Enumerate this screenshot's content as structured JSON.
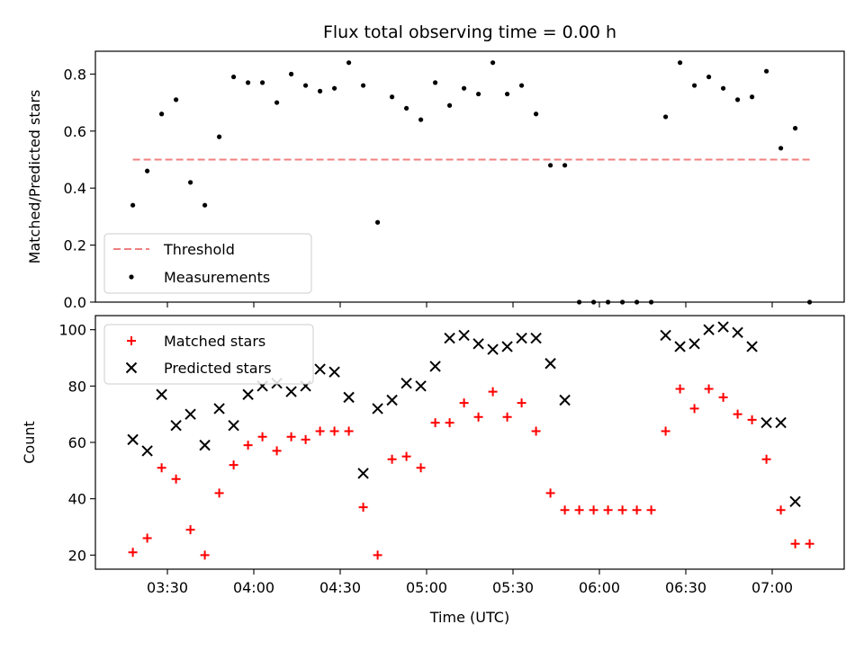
{
  "chart_data": {
    "title": "Flux total observing time = 0.00 h",
    "xlabel": "Time (UTC)",
    "x_ticks": [
      "03:30",
      "04:00",
      "04:30",
      "05:00",
      "05:30",
      "06:00",
      "06:30",
      "07:00"
    ],
    "x_range": [
      "03:05",
      "07:25"
    ],
    "panels": [
      {
        "type": "scatter",
        "ylabel": "Matched/Predicted stars",
        "ylim": [
          0,
          0.88
        ],
        "y_ticks": [
          "0.0",
          "0.2",
          "0.4",
          "0.6",
          "0.8"
        ],
        "legend": "lower-left",
        "threshold": {
          "name": "Threshold",
          "value": 0.5,
          "x_start": "03:18",
          "x_end": "07:13",
          "color": "#f08080"
        },
        "series": [
          {
            "name": "Measurements",
            "color": "#000000",
            "marker": "dot",
            "points": [
              [
                "03:18",
                0.34
              ],
              [
                "03:23",
                0.46
              ],
              [
                "03:28",
                0.66
              ],
              [
                "03:33",
                0.71
              ],
              [
                "03:38",
                0.42
              ],
              [
                "03:43",
                0.34
              ],
              [
                "03:48",
                0.58
              ],
              [
                "03:53",
                0.79
              ],
              [
                "03:58",
                0.77
              ],
              [
                "04:03",
                0.77
              ],
              [
                "04:08",
                0.7
              ],
              [
                "04:13",
                0.8
              ],
              [
                "04:18",
                0.76
              ],
              [
                "04:23",
                0.74
              ],
              [
                "04:28",
                0.75
              ],
              [
                "04:33",
                0.84
              ],
              [
                "04:38",
                0.76
              ],
              [
                "04:43",
                0.28
              ],
              [
                "04:48",
                0.72
              ],
              [
                "04:53",
                0.68
              ],
              [
                "04:58",
                0.64
              ],
              [
                "05:03",
                0.77
              ],
              [
                "05:08",
                0.69
              ],
              [
                "05:13",
                0.75
              ],
              [
                "05:18",
                0.73
              ],
              [
                "05:23",
                0.84
              ],
              [
                "05:28",
                0.73
              ],
              [
                "05:33",
                0.76
              ],
              [
                "05:38",
                0.66
              ],
              [
                "05:43",
                0.48
              ],
              [
                "05:48",
                0.48
              ],
              [
                "05:53",
                0.0
              ],
              [
                "05:58",
                0.0
              ],
              [
                "06:03",
                0.0
              ],
              [
                "06:08",
                0.0
              ],
              [
                "06:13",
                0.0
              ],
              [
                "06:18",
                0.0
              ],
              [
                "06:23",
                0.65
              ],
              [
                "06:28",
                0.84
              ],
              [
                "06:33",
                0.76
              ],
              [
                "06:38",
                0.79
              ],
              [
                "06:43",
                0.75
              ],
              [
                "06:48",
                0.71
              ],
              [
                "06:53",
                0.72
              ],
              [
                "06:58",
                0.81
              ],
              [
                "07:03",
                0.54
              ],
              [
                "07:08",
                0.61
              ],
              [
                "07:13",
                0.0
              ]
            ]
          }
        ]
      },
      {
        "type": "scatter",
        "ylabel": "Count",
        "ylim": [
          15,
          105
        ],
        "y_ticks": [
          "20",
          "40",
          "60",
          "80",
          "100"
        ],
        "legend": "top-left",
        "series": [
          {
            "name": "Matched stars",
            "color": "#ff0000",
            "marker": "plus",
            "points": [
              [
                "03:18",
                21
              ],
              [
                "03:23",
                26
              ],
              [
                "03:28",
                51
              ],
              [
                "03:33",
                47
              ],
              [
                "03:38",
                29
              ],
              [
                "03:43",
                20
              ],
              [
                "03:48",
                42
              ],
              [
                "03:53",
                52
              ],
              [
                "03:58",
                59
              ],
              [
                "04:03",
                62
              ],
              [
                "04:08",
                57
              ],
              [
                "04:13",
                62
              ],
              [
                "04:18",
                61
              ],
              [
                "04:23",
                64
              ],
              [
                "04:28",
                64
              ],
              [
                "04:33",
                64
              ],
              [
                "04:38",
                37
              ],
              [
                "04:43",
                20
              ],
              [
                "04:48",
                54
              ],
              [
                "04:53",
                55
              ],
              [
                "04:58",
                51
              ],
              [
                "05:03",
                67
              ],
              [
                "05:08",
                67
              ],
              [
                "05:13",
                74
              ],
              [
                "05:18",
                69
              ],
              [
                "05:23",
                78
              ],
              [
                "05:28",
                69
              ],
              [
                "05:33",
                74
              ],
              [
                "05:38",
                64
              ],
              [
                "05:43",
                42
              ],
              [
                "05:48",
                36
              ],
              [
                "05:53",
                36
              ],
              [
                "05:58",
                36
              ],
              [
                "06:03",
                36
              ],
              [
                "06:08",
                36
              ],
              [
                "06:13",
                36
              ],
              [
                "06:18",
                36
              ],
              [
                "06:23",
                64
              ],
              [
                "06:28",
                79
              ],
              [
                "06:33",
                72
              ],
              [
                "06:38",
                79
              ],
              [
                "06:43",
                76
              ],
              [
                "06:48",
                70
              ],
              [
                "06:53",
                68
              ],
              [
                "06:58",
                54
              ],
              [
                "07:03",
                36
              ],
              [
                "07:08",
                24
              ],
              [
                "07:13",
                24
              ]
            ]
          },
          {
            "name": "Predicted stars",
            "color": "#000000",
            "marker": "x",
            "points": [
              [
                "03:18",
                61
              ],
              [
                "03:23",
                57
              ],
              [
                "03:28",
                77
              ],
              [
                "03:33",
                66
              ],
              [
                "03:38",
                70
              ],
              [
                "03:43",
                59
              ],
              [
                "03:48",
                72
              ],
              [
                "03:53",
                66
              ],
              [
                "03:58",
                77
              ],
              [
                "04:03",
                80
              ],
              [
                "04:08",
                81
              ],
              [
                "04:13",
                78
              ],
              [
                "04:18",
                80
              ],
              [
                "04:23",
                86
              ],
              [
                "04:28",
                85
              ],
              [
                "04:33",
                76
              ],
              [
                "04:38",
                49
              ],
              [
                "04:43",
                72
              ],
              [
                "04:48",
                75
              ],
              [
                "04:53",
                81
              ],
              [
                "04:58",
                80
              ],
              [
                "05:03",
                87
              ],
              [
                "05:08",
                97
              ],
              [
                "05:13",
                98
              ],
              [
                "05:18",
                95
              ],
              [
                "05:23",
                93
              ],
              [
                "05:28",
                94
              ],
              [
                "05:33",
                97
              ],
              [
                "05:38",
                97
              ],
              [
                "05:43",
                88
              ],
              [
                "05:48",
                75
              ],
              [
                "06:23",
                98
              ],
              [
                "06:28",
                94
              ],
              [
                "06:33",
                95
              ],
              [
                "06:38",
                100
              ],
              [
                "06:43",
                101
              ],
              [
                "06:48",
                99
              ],
              [
                "06:53",
                94
              ],
              [
                "06:58",
                67
              ],
              [
                "07:03",
                67
              ],
              [
                "07:08",
                39
              ]
            ]
          }
        ]
      }
    ]
  }
}
